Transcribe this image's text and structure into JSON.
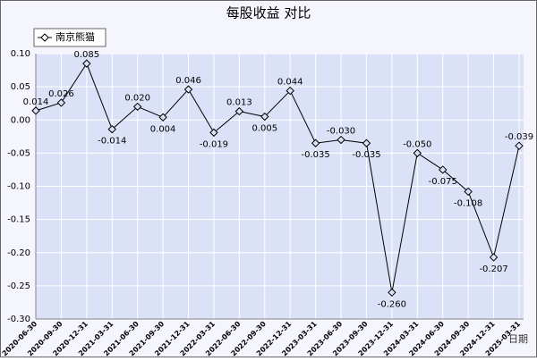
{
  "chart_data": {
    "type": "line",
    "title": "每股收益 对比",
    "x_label": "日期",
    "categories": [
      "2020-06-30",
      "2020-09-30",
      "2020-12-31",
      "2021-03-31",
      "2021-06-30",
      "2021-09-30",
      "2021-12-31",
      "2022-03-31",
      "2022-06-30",
      "2022-09-30",
      "2022-12-31",
      "2023-03-31",
      "2023-06-30",
      "2023-09-30",
      "2023-12-31",
      "2024-03-31",
      "2024-06-30",
      "2024-09-30",
      "2024-12-31",
      "2025-03-31"
    ],
    "series": [
      {
        "name": "南京熊猫",
        "color": "#000000",
        "values": [
          0.014,
          0.026,
          0.085,
          -0.014,
          0.02,
          0.004,
          0.046,
          -0.019,
          0.013,
          0.005,
          0.044,
          -0.035,
          -0.03,
          -0.035,
          -0.26,
          -0.05,
          -0.075,
          -0.108,
          -0.207,
          -0.039
        ],
        "value_labels": [
          "0.014",
          "0.026",
          "0.085",
          "-0.014",
          "0.020",
          "0.004",
          "0.046",
          "-0.019",
          "0.013",
          "0.005",
          "0.044",
          "-0.035",
          "-0.030",
          "-0.035",
          "-0.260",
          "-0.050",
          "-0.075",
          "-0.108",
          "-0.207",
          "-0.039"
        ]
      }
    ],
    "ylim": [
      -0.3,
      0.1
    ],
    "yticks": [
      {
        "value": 0.1,
        "label": "0.10"
      },
      {
        "value": 0.05,
        "label": "0.05"
      },
      {
        "value": 0,
        "label": "0.00"
      },
      {
        "value": -0.05,
        "label": "-0.05"
      },
      {
        "value": -0.1,
        "label": "-0.10"
      },
      {
        "value": -0.15,
        "label": "-0.15"
      },
      {
        "value": -0.2,
        "label": "-0.20"
      },
      {
        "value": -0.25,
        "label": "-0.25"
      },
      {
        "value": -0.3,
        "label": "-0.30"
      }
    ],
    "grid": true,
    "legend": "top-left"
  }
}
